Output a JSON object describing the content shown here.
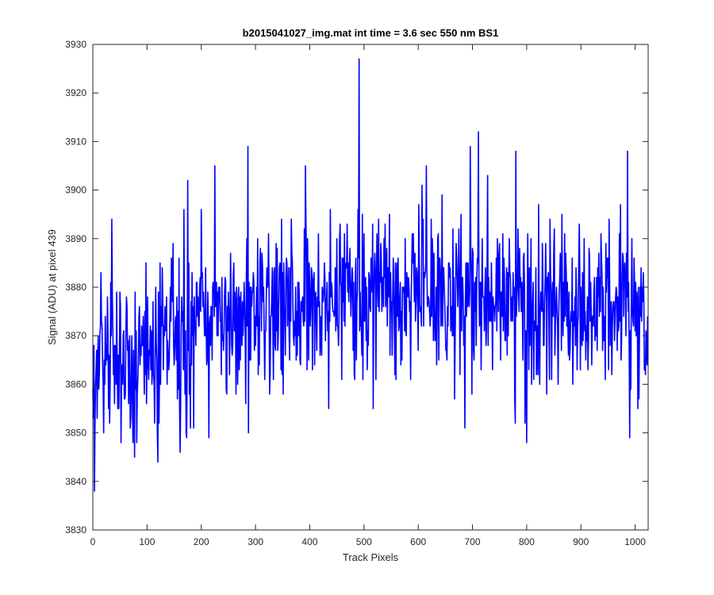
{
  "chart_data": {
    "type": "line",
    "title": "b2015041027_img.mat int time = 3.6 sec  550 nm BS1",
    "xlabel": "Track Pixels",
    "ylabel": "Signal (ADU) at pixel 439",
    "xlim": [
      0,
      1024
    ],
    "ylim": [
      3830,
      3930
    ],
    "xticks": [
      0,
      100,
      200,
      300,
      400,
      500,
      600,
      700,
      800,
      900,
      1000
    ],
    "yticks": [
      3830,
      3840,
      3850,
      3860,
      3870,
      3880,
      3890,
      3900,
      3910,
      3920,
      3930
    ],
    "grid": false,
    "legend": "none",
    "series": [
      {
        "color": "#0000ff",
        "n_points": 1024,
        "trend": [
          [
            0,
            3864
          ],
          [
            100,
            3868
          ],
          [
            200,
            3871
          ],
          [
            300,
            3876
          ],
          [
            400,
            3878
          ],
          [
            500,
            3879
          ],
          [
            600,
            3880
          ],
          [
            700,
            3879
          ],
          [
            800,
            3877
          ],
          [
            900,
            3876
          ],
          [
            1000,
            3874
          ],
          [
            1023,
            3872
          ]
        ],
        "noise_std": 8.5,
        "notable_points": [
          {
            "x": 3,
            "y": 3838
          },
          {
            "x": 35,
            "y": 3894
          },
          {
            "x": 77,
            "y": 3845
          },
          {
            "x": 120,
            "y": 3844
          },
          {
            "x": 172,
            "y": 3850
          },
          {
            "x": 173,
            "y": 3849
          },
          {
            "x": 175,
            "y": 3902
          },
          {
            "x": 214,
            "y": 3849
          },
          {
            "x": 225,
            "y": 3905
          },
          {
            "x": 286,
            "y": 3909
          },
          {
            "x": 392,
            "y": 3905
          },
          {
            "x": 491,
            "y": 3927
          },
          {
            "x": 517,
            "y": 3855
          },
          {
            "x": 615,
            "y": 3905
          },
          {
            "x": 686,
            "y": 3851
          },
          {
            "x": 711,
            "y": 3912
          },
          {
            "x": 780,
            "y": 3908
          },
          {
            "x": 797,
            "y": 3852
          },
          {
            "x": 800,
            "y": 3848
          },
          {
            "x": 986,
            "y": 3908
          },
          {
            "x": 990,
            "y": 3849
          },
          {
            "x": 1005,
            "y": 3855
          }
        ]
      }
    ]
  }
}
